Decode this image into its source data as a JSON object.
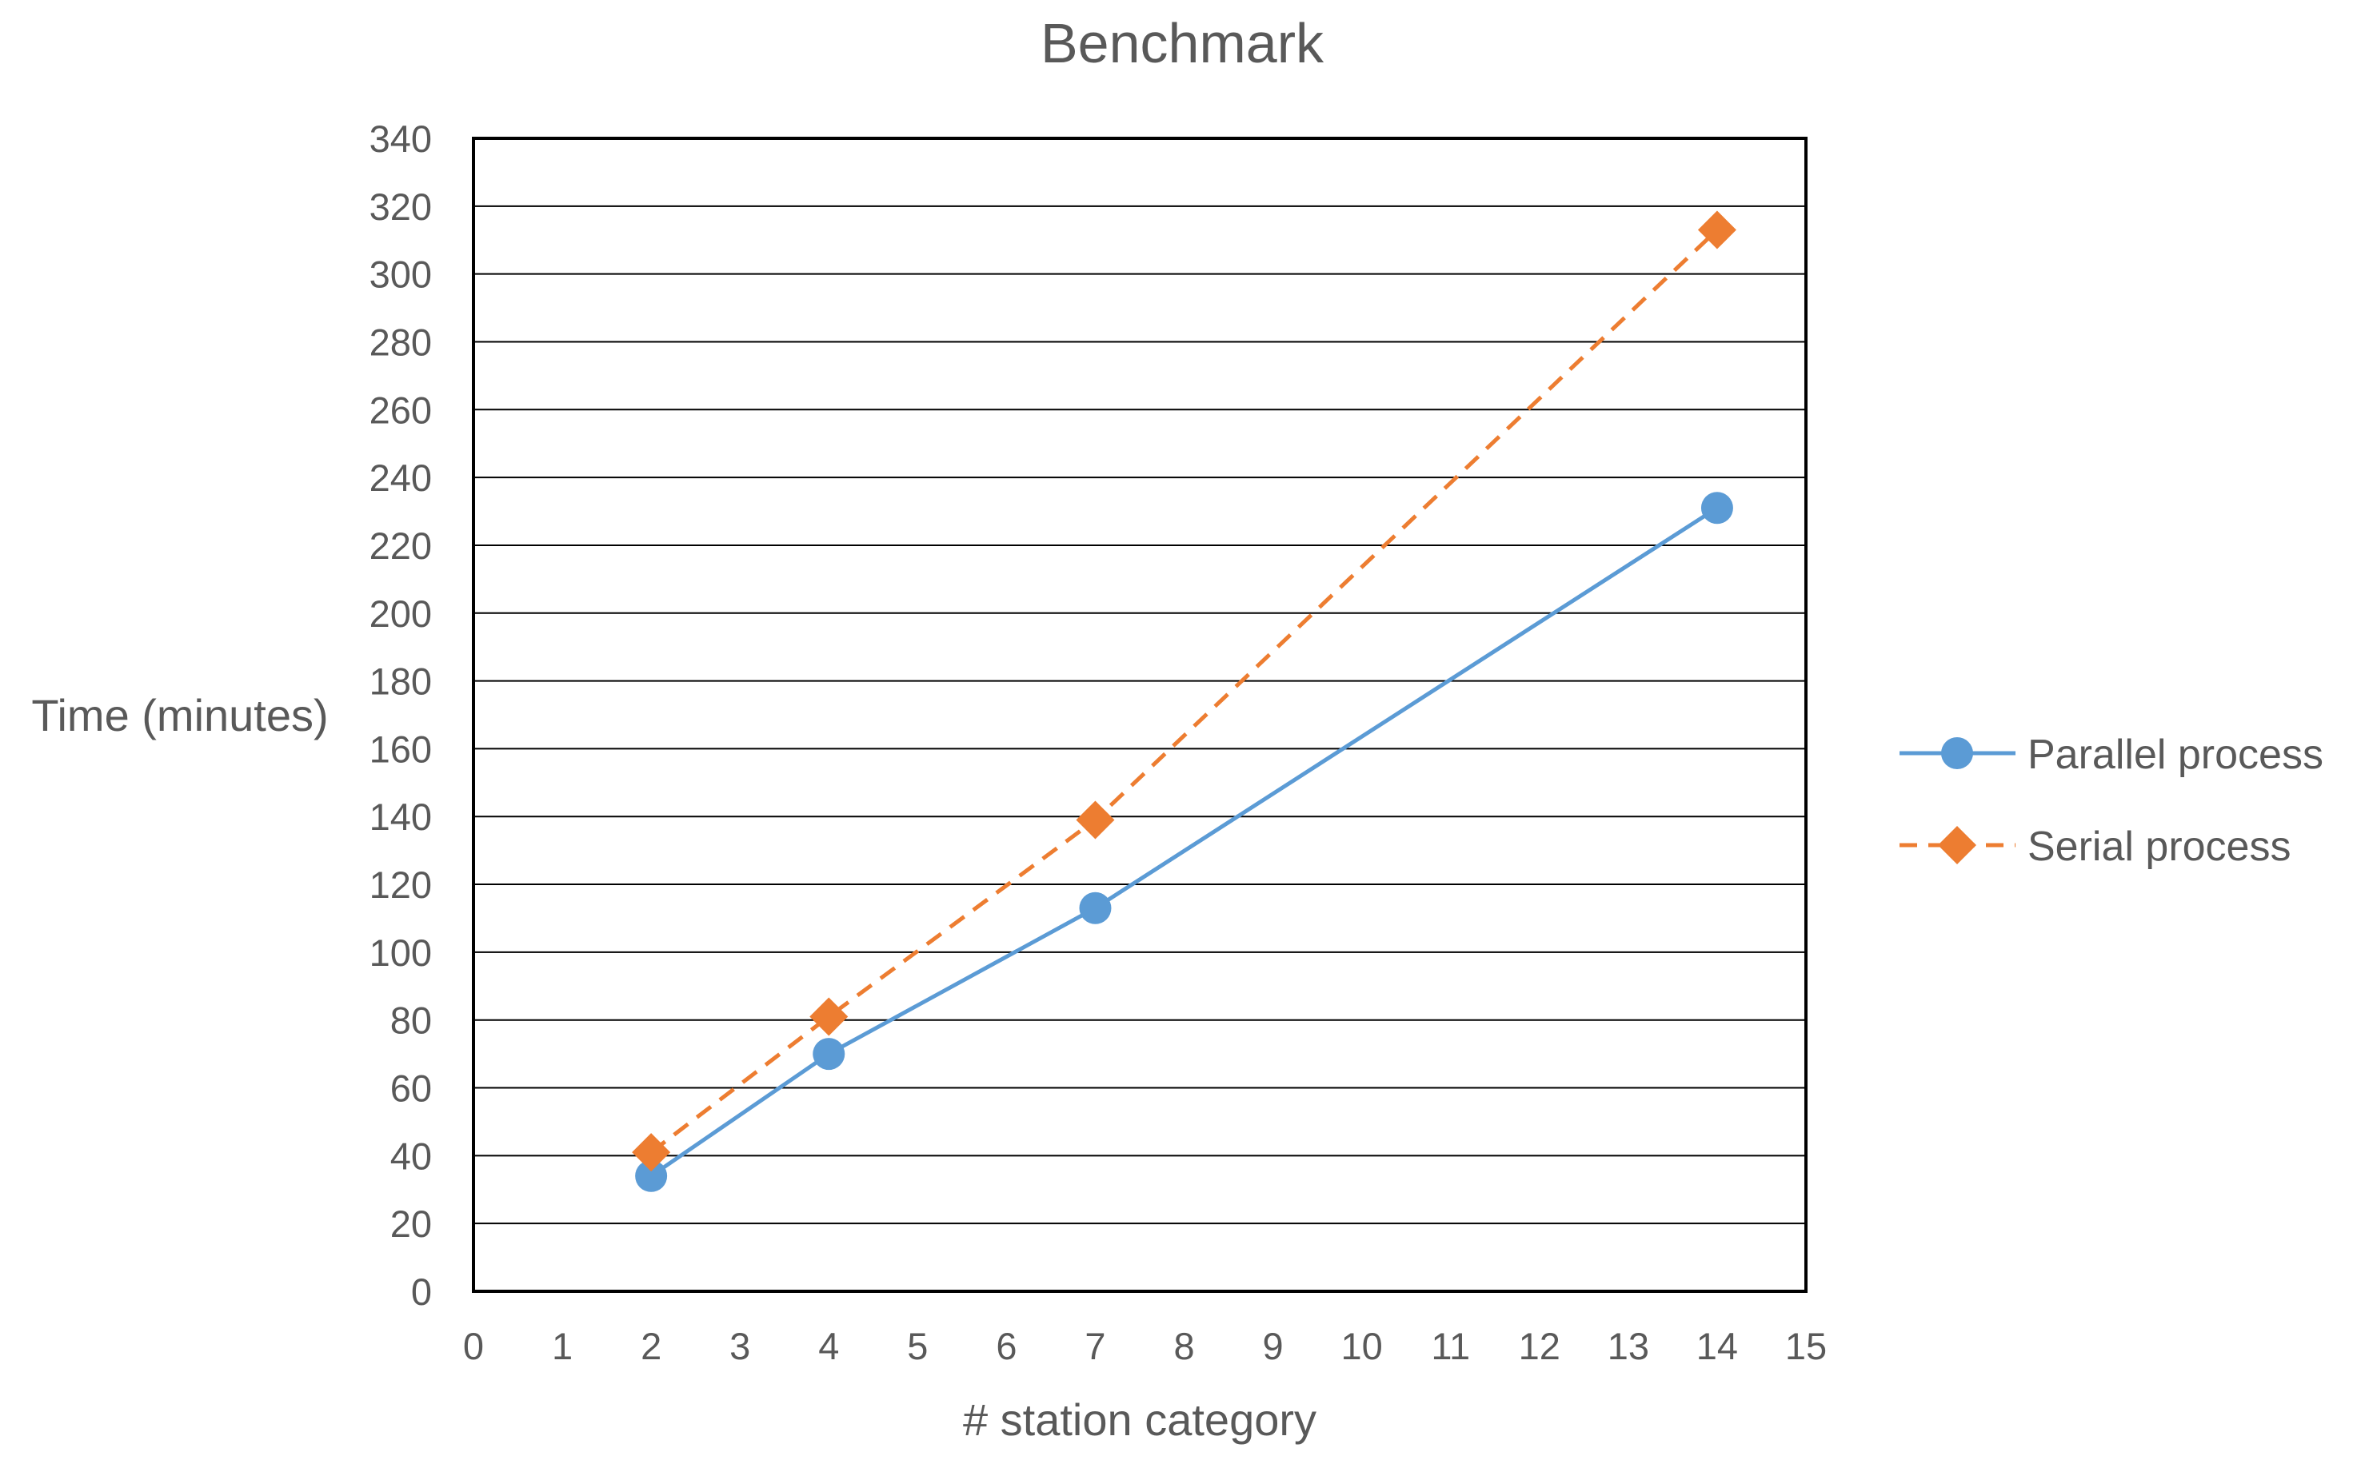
{
  "chart_data": {
    "type": "line",
    "title": "Benchmark",
    "xlabel": "# station category",
    "ylabel": "Time (minutes)",
    "xlim": [
      0,
      15
    ],
    "ylim": [
      0,
      340
    ],
    "xticks": [
      "0",
      "1",
      "2",
      "3",
      "4",
      "5",
      "6",
      "7",
      "8",
      "9",
      "10",
      "11",
      "12",
      "13",
      "14",
      "15"
    ],
    "yticks": [
      "0",
      "20",
      "40",
      "60",
      "80",
      "100",
      "120",
      "140",
      "160",
      "180",
      "200",
      "220",
      "240",
      "260",
      "280",
      "300",
      "320",
      "340"
    ],
    "grid": "horizontal",
    "legend_position": "right",
    "series": [
      {
        "name": "Parallel process",
        "color": "#5b9bd5",
        "line_style": "solid",
        "marker": "circle",
        "x": [
          2,
          4,
          7,
          14
        ],
        "y": [
          34,
          70,
          113,
          231
        ]
      },
      {
        "name": "Serial process",
        "color": "#ed7d31",
        "line_style": "dashed",
        "marker": "diamond",
        "x": [
          2,
          4,
          7,
          14
        ],
        "y": [
          41,
          81,
          139,
          313
        ]
      }
    ]
  }
}
